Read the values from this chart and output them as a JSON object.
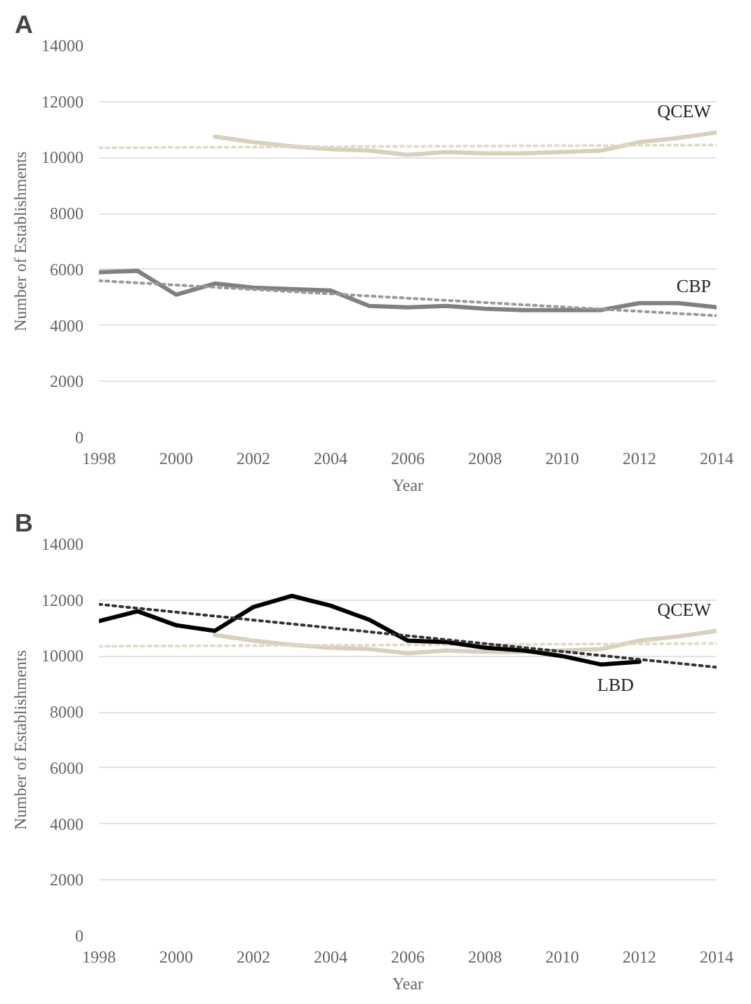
{
  "chart_data": [
    {
      "type": "line",
      "title": "A",
      "xlabel": "Year",
      "ylabel": "Number of Establishments",
      "xlim": [
        1998,
        2014
      ],
      "ylim": [
        0,
        14000
      ],
      "xticks": [
        1998,
        2000,
        2002,
        2004,
        2006,
        2008,
        2010,
        2012,
        2014
      ],
      "yticks": [
        0,
        2000,
        4000,
        6000,
        8000,
        10000,
        12000,
        14000
      ],
      "grid": "y",
      "series": [
        {
          "name": "QCEW",
          "color": "#d6d0bd",
          "x": [
            2001,
            2002,
            2003,
            2004,
            2005,
            2006,
            2007,
            2008,
            2009,
            2010,
            2011,
            2012,
            2013,
            2014
          ],
          "values": [
            10750,
            10550,
            10400,
            10300,
            10250,
            10100,
            10200,
            10150,
            10150,
            10200,
            10250,
            10550,
            10700,
            10900
          ]
        },
        {
          "color": "#e0dac8",
          "line_style": "dotted",
          "x": [
            1998,
            2014
          ],
          "values": [
            10350,
            10450
          ]
        },
        {
          "name": "CBP",
          "color": "#808080",
          "x": [
            1998,
            1999,
            2000,
            2001,
            2002,
            2003,
            2004,
            2005,
            2006,
            2007,
            2008,
            2009,
            2010,
            2011,
            2012,
            2013,
            2014
          ],
          "values": [
            5900,
            5950,
            5100,
            5500,
            5350,
            5300,
            5250,
            4700,
            4650,
            4700,
            4600,
            4550,
            4550,
            4550,
            4800,
            4800,
            4650
          ]
        },
        {
          "color": "#999999",
          "line_style": "dotted",
          "x": [
            1998,
            2014
          ],
          "values": [
            5600,
            4350
          ]
        }
      ]
    },
    {
      "type": "line",
      "title": "B",
      "xlabel": "Year",
      "ylabel": "Number of Establishments",
      "xlim": [
        1998,
        2014
      ],
      "ylim": [
        0,
        14000
      ],
      "xticks": [
        1998,
        2000,
        2002,
        2004,
        2006,
        2008,
        2010,
        2012,
        2014
      ],
      "yticks": [
        0,
        2000,
        4000,
        6000,
        8000,
        10000,
        12000,
        14000
      ],
      "grid": "y",
      "series": [
        {
          "name": "QCEW",
          "color": "#d6d0bd",
          "x": [
            2001,
            2002,
            2003,
            2004,
            2005,
            2006,
            2007,
            2008,
            2009,
            2010,
            2011,
            2012,
            2013,
            2014
          ],
          "values": [
            10750,
            10550,
            10400,
            10300,
            10250,
            10100,
            10200,
            10150,
            10150,
            10200,
            10250,
            10550,
            10700,
            10900
          ]
        },
        {
          "color": "#e0dac8",
          "line_style": "dotted",
          "x": [
            1998,
            2014
          ],
          "values": [
            10350,
            10450
          ]
        },
        {
          "name": "LBD",
          "color": "#000000",
          "x": [
            1998,
            1999,
            2000,
            2001,
            2002,
            2003,
            2004,
            2005,
            2006,
            2007,
            2008,
            2009,
            2010,
            2011,
            2012
          ],
          "values": [
            11250,
            11600,
            11100,
            10900,
            11750,
            12150,
            11800,
            11300,
            10550,
            10500,
            10300,
            10200,
            10000,
            9700,
            9800
          ]
        },
        {
          "color": "#333333",
          "line_style": "dotted",
          "x": [
            1998,
            2014
          ],
          "values": [
            11850,
            9600
          ]
        }
      ]
    }
  ]
}
